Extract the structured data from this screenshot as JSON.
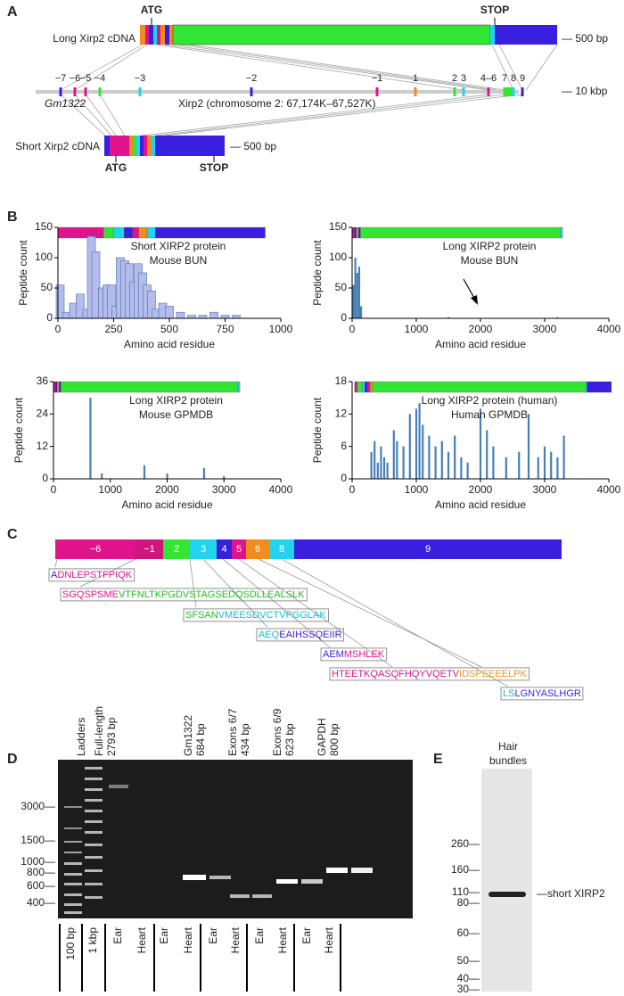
{
  "panel_labels": [
    "A",
    "B",
    "C",
    "D",
    "E"
  ],
  "panel_a": {
    "long_label": "Long Xirp2 cDNA",
    "long_atg": "ATG",
    "long_stop": "STOP",
    "long_scale": "— 500 bp",
    "exons": [
      "−7",
      "−6",
      "−5",
      "−4",
      "−3",
      "−2",
      "−1",
      "1",
      "2",
      "3",
      "4–6",
      "7",
      "8",
      "9"
    ],
    "genomic_scale": "— 10 kbp",
    "gm_label": "Gm1322",
    "xirp2_label": "Xirp2 (chromosome 2:  67,174K–67,527K)",
    "short_label": "Short Xirp2 cDNA",
    "short_atg": "ATG",
    "short_stop": "STOP",
    "short_scale": "— 500 bp"
  },
  "chart_data": [
    {
      "type": "bar",
      "title": "Short XIRP2 protein",
      "subtitle": "Mouse BUN",
      "x_label": "Amino acid residue",
      "y_label": "Peptide count",
      "color": "#b3bcec",
      "x": [
        10,
        40,
        70,
        100,
        130,
        150,
        170,
        200,
        220,
        240,
        260,
        280,
        300,
        320,
        340,
        360,
        380,
        400,
        420,
        440,
        470,
        500,
        550,
        600,
        650,
        700,
        750,
        800
      ],
      "values": [
        55,
        10,
        25,
        40,
        15,
        135,
        110,
        50,
        55,
        55,
        20,
        100,
        95,
        90,
        60,
        90,
        75,
        55,
        45,
        15,
        25,
        20,
        10,
        5,
        5,
        10,
        5,
        5
      ],
      "xlim": [
        0,
        1000
      ],
      "xticks": [
        0,
        250,
        500,
        750,
        1000
      ],
      "ylim": [
        0,
        150
      ],
      "yticks": [
        0,
        50,
        100,
        150
      ]
    },
    {
      "type": "bar",
      "title": "Long XIRP2 protein",
      "subtitle": "Mouse BUN",
      "x_label": "Amino acid residue",
      "y_label": "Peptide count",
      "color": "#4a7fb5",
      "x": [
        20,
        50,
        80,
        110,
        140,
        1500,
        3200
      ],
      "values": [
        55,
        100,
        75,
        85,
        20,
        2,
        2
      ],
      "xlim": [
        0,
        4000
      ],
      "xticks": [
        0,
        1000,
        2000,
        3000,
        4000
      ],
      "ylim": [
        0,
        150
      ],
      "yticks": [
        0,
        50,
        100,
        150
      ]
    },
    {
      "type": "bar",
      "title": "Long XIRP2 protein",
      "subtitle": "Mouse GPMDB",
      "x_label": "Amino acid residue",
      "y_label": "Peptide count",
      "color": "#4a7fb5",
      "x": [
        650,
        850,
        1600,
        2000,
        2650,
        3000
      ],
      "values": [
        30,
        2,
        5,
        2,
        4,
        1
      ],
      "xlim": [
        0,
        4000
      ],
      "xticks": [
        0,
        1000,
        2000,
        3000,
        4000
      ],
      "ylim": [
        0,
        36
      ],
      "yticks": [
        0,
        12,
        24,
        36
      ]
    },
    {
      "type": "bar",
      "title": "Long XIRP2 protein (human)",
      "subtitle": "Human GPMDB",
      "x_label": "Amino acid residue",
      "y_label": "Peptide count",
      "color": "#4a7fb5",
      "x": [
        300,
        350,
        400,
        450,
        500,
        550,
        650,
        700,
        800,
        900,
        1000,
        1050,
        1100,
        1200,
        1300,
        1400,
        1500,
        1600,
        1700,
        1800,
        2000,
        2100,
        2200,
        2400,
        2600,
        2750,
        2900,
        3000,
        3100,
        3200,
        3300
      ],
      "values": [
        5,
        7,
        3,
        6,
        4,
        3,
        9,
        7,
        6,
        12,
        13,
        14,
        10,
        8,
        6,
        7,
        5,
        8,
        4,
        3,
        13,
        9,
        6,
        4,
        5,
        12,
        4,
        6,
        5,
        4,
        8
      ],
      "xlim": [
        0,
        4000
      ],
      "xticks": [
        0,
        1000,
        2000,
        3000,
        4000
      ],
      "ylim": [
        0,
        18
      ],
      "yticks": [
        0,
        6,
        12,
        18
      ]
    }
  ],
  "panel_c": {
    "segments": [
      "−6",
      "−1",
      "2",
      "3",
      "4",
      "5",
      "6",
      "8",
      "9"
    ],
    "peptides": [
      [
        "A",
        "DNLEPSTFPIQK"
      ],
      [
        "SGQSPSME",
        "VTFNLTKPGDVSTAGSEDQSDLLEALSLK"
      ],
      [
        "SFSAN",
        "VMEESDVCTVPGGLAK"
      ],
      [
        "AEQ",
        "EAIHSSQEIIR"
      ],
      [
        "AEM",
        "MSHLEK"
      ],
      [
        "HTEETKQASQFHQYVQETV",
        "IDSPEEEELPK"
      ],
      [
        "LS",
        "LGNYASLHGR"
      ]
    ]
  },
  "panel_d": {
    "top_labels": [
      [
        "Ladders"
      ],
      [
        "Full-length",
        "2793 bp"
      ],
      [
        "Gm1322",
        "684 bp"
      ],
      [
        "Exons 6/7",
        "434 bp"
      ],
      [
        "Exons 6/9",
        "623 bp"
      ],
      [
        "GAPDH",
        "800 bp"
      ]
    ],
    "ladder_labels": [
      "3000—",
      "1500—",
      "1000—",
      "800—",
      "600—",
      "400—"
    ],
    "bottom_labels": [
      "100 bp",
      "1 kbp",
      "Ear",
      "Heart",
      "Ear",
      "Heart",
      "Ear",
      "Heart",
      "Ear",
      "Heart",
      "Ear",
      "Heart"
    ]
  },
  "panel_e": {
    "title": [
      "Hair",
      "bundles"
    ],
    "markers": [
      "260—",
      "160—",
      "110—",
      "80—",
      "60—",
      "50—",
      "40—",
      "30—"
    ],
    "band_label": "—short XIRP2"
  }
}
